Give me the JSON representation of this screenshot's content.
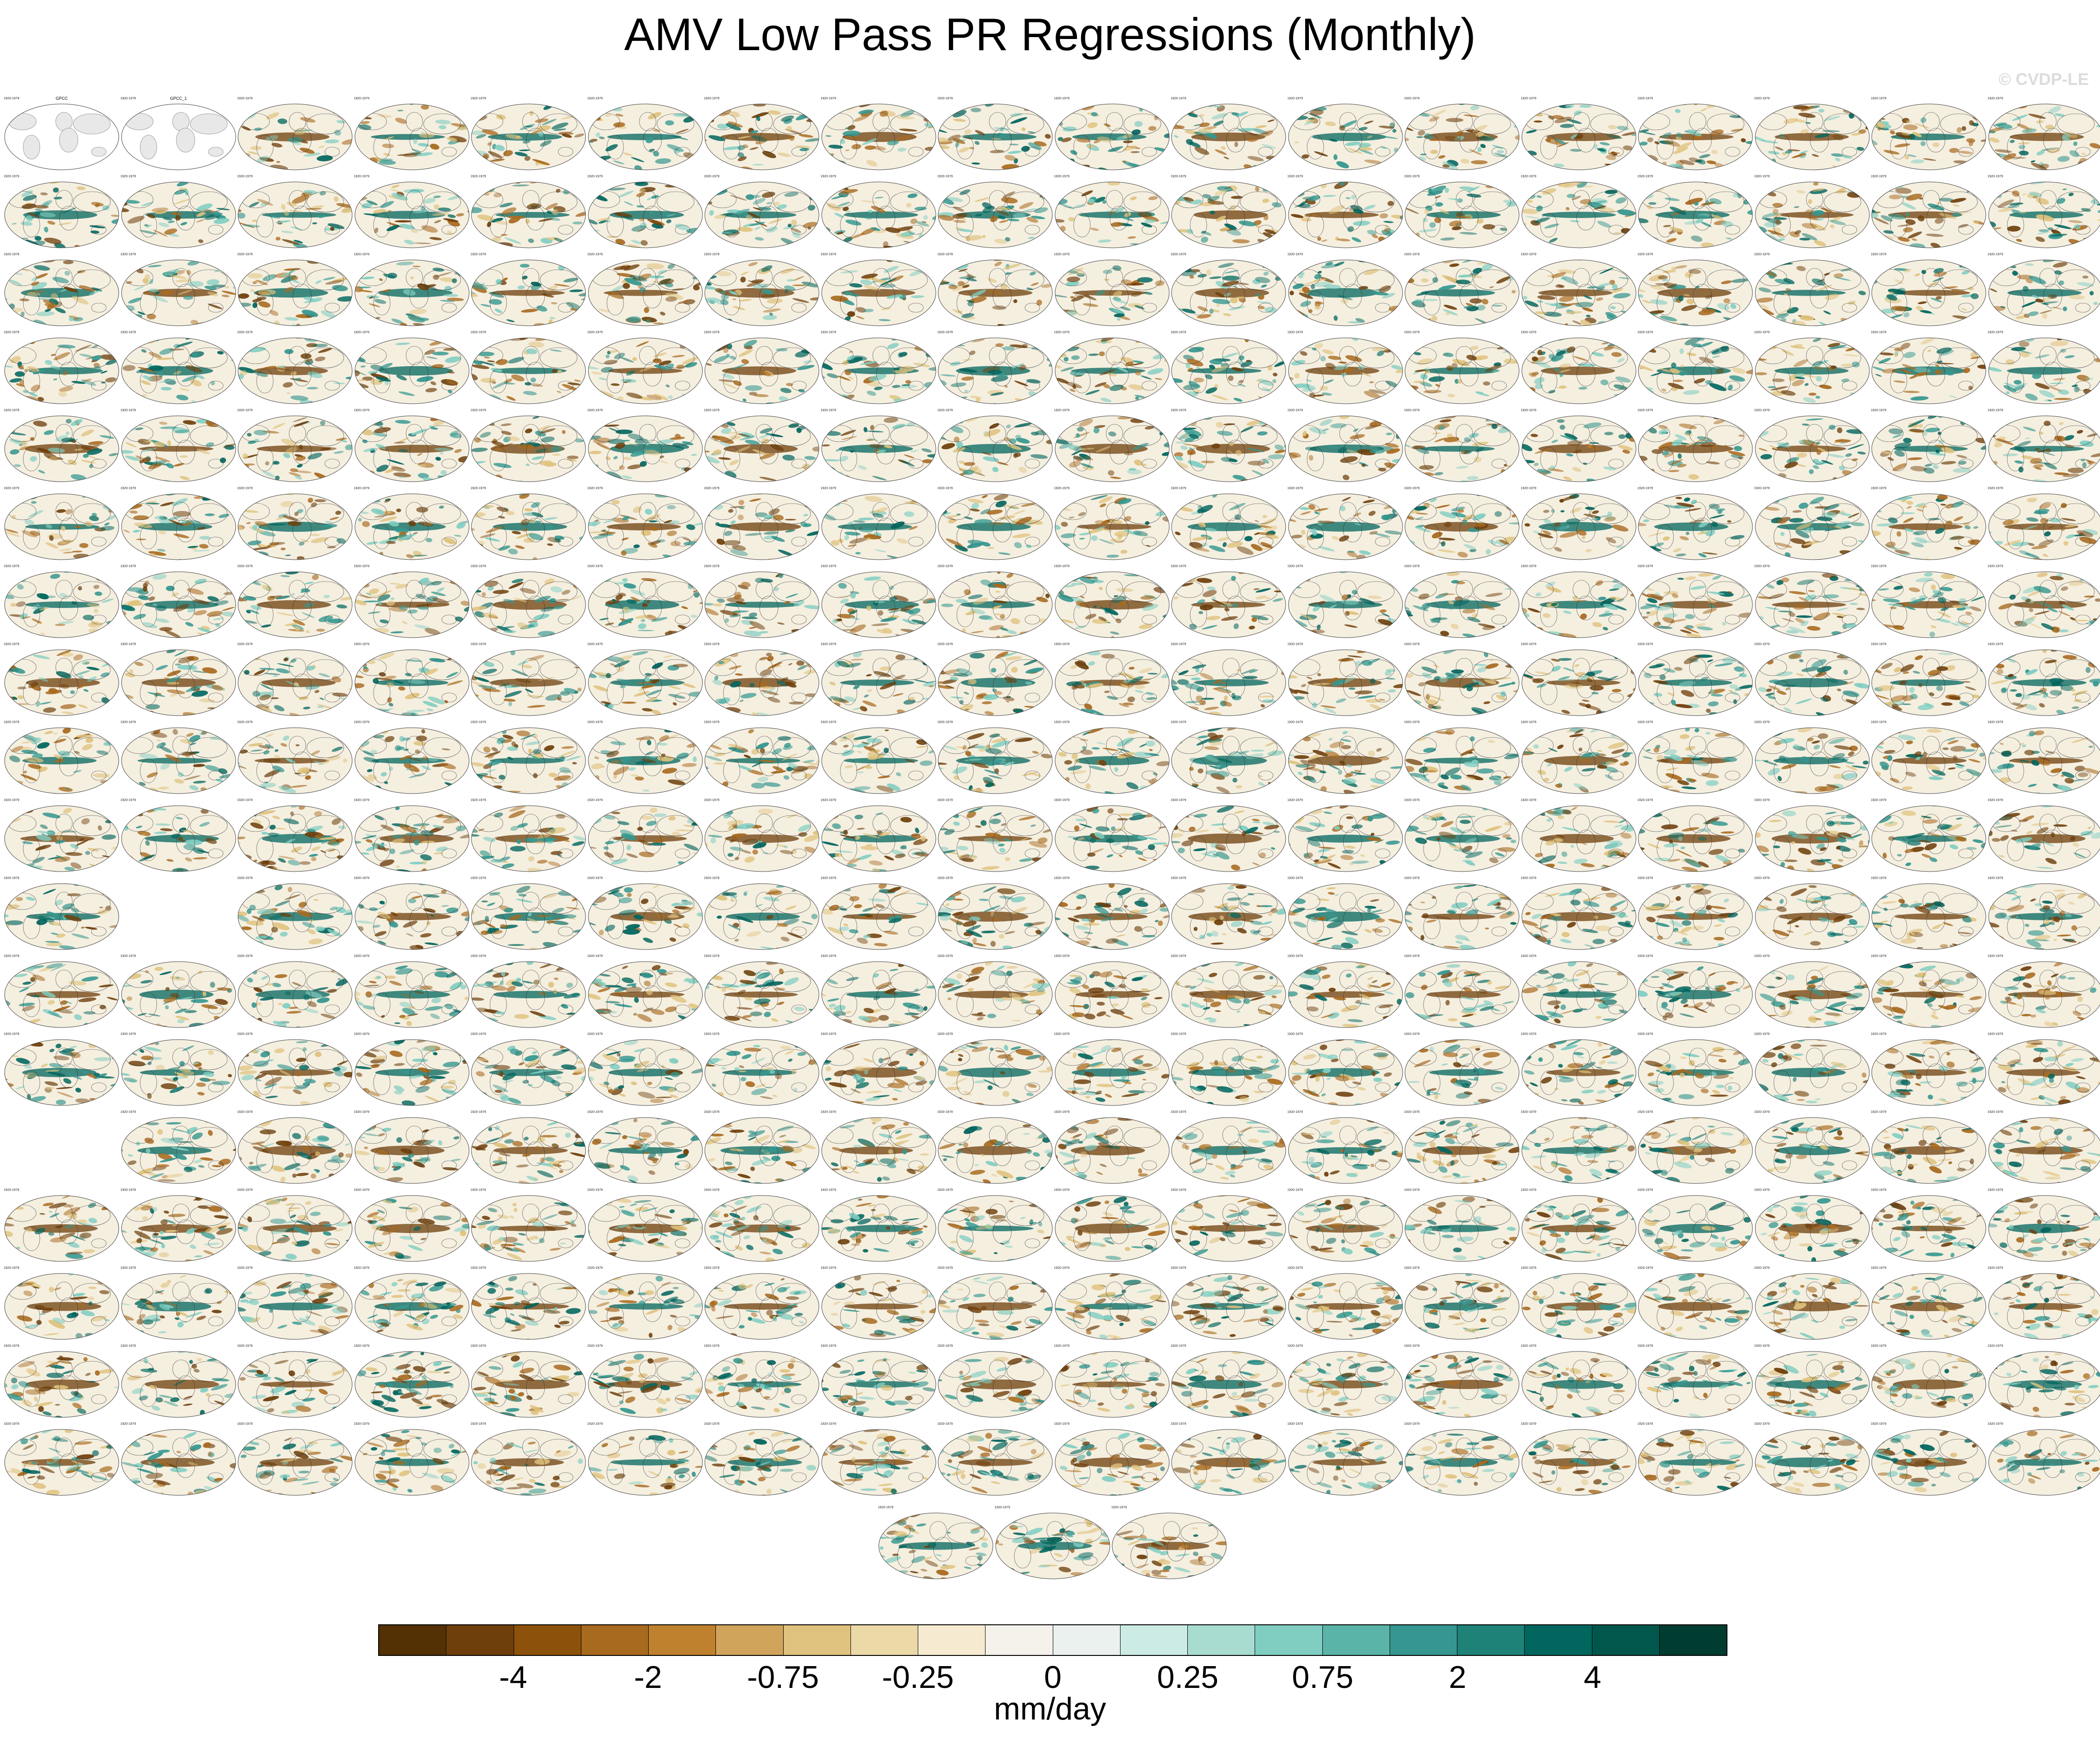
{
  "title": "AMV Low Pass PR Regressions (Monthly)",
  "watermark": "© CVDP-LE",
  "colorbar": {
    "colors": [
      "#543005",
      "#6e3f0b",
      "#8c510a",
      "#a86a1f",
      "#bf812d",
      "#d1a45c",
      "#dfc27d",
      "#ecd9a8",
      "#f6ebd0",
      "#f5f2ec",
      "#eaf1ef",
      "#cdebe5",
      "#a8dcd1",
      "#80cdc1",
      "#5ab4a8",
      "#35978f",
      "#1e8279",
      "#01665e",
      "#02574c",
      "#003c30"
    ],
    "tick_labels": [
      "-4",
      "-2",
      "-0.75",
      "-0.25",
      "0",
      "0.25",
      "0.75",
      "2",
      "4"
    ],
    "units": "mm/day"
  },
  "panel_colors": {
    "brown": "#a86a1f",
    "darkbrown": "#6e3f0b",
    "teal": "#35978f",
    "darkteal": "#01665e",
    "land_obs": "#e8e8e8"
  },
  "panels": {
    "obs": [
      {
        "title": "GPCC",
        "years": "1920-1979"
      },
      {
        "title": "GPCC_1",
        "years": "1920-1979"
      }
    ],
    "model_years": "1920-1979",
    "rows": [
      {
        "count": 18,
        "skip": [
          0,
          1
        ]
      },
      {
        "count": 18,
        "skip": []
      },
      {
        "count": 18,
        "skip": []
      },
      {
        "count": 18,
        "skip": []
      },
      {
        "count": 18,
        "skip": []
      },
      {
        "count": 18,
        "skip": []
      },
      {
        "count": 18,
        "skip": []
      },
      {
        "count": 18,
        "skip": []
      },
      {
        "count": 18,
        "skip": []
      },
      {
        "count": 18,
        "skip": []
      },
      {
        "count": 18,
        "skip": [
          1
        ]
      },
      {
        "count": 18,
        "skip": []
      },
      {
        "count": 18,
        "skip": []
      },
      {
        "count": 18,
        "skip": [
          0
        ]
      },
      {
        "count": 18,
        "skip": []
      },
      {
        "count": 18,
        "skip": []
      },
      {
        "count": 18,
        "skip": []
      },
      {
        "count": 18,
        "skip": []
      }
    ],
    "last_row": {
      "count": 3,
      "years": "1920-1979"
    }
  }
}
